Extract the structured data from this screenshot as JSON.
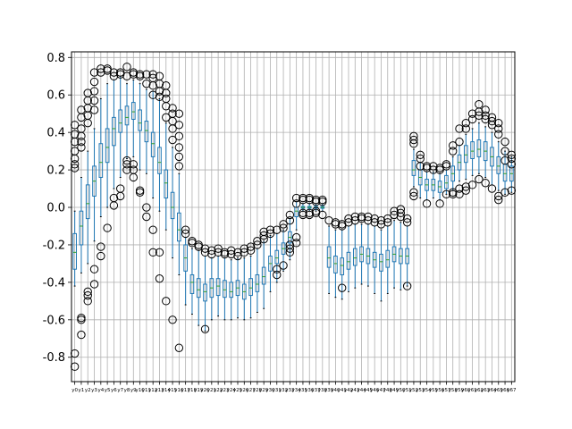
{
  "chart_data": {
    "type": "box",
    "xlabel": "",
    "ylabel": "",
    "ylim": [
      -0.93,
      0.83
    ],
    "yticks": [
      -0.8,
      -0.6,
      -0.4,
      -0.2,
      0.0,
      0.2,
      0.4,
      0.6,
      0.8
    ],
    "grid": true,
    "colors": {
      "box": "#1f77b4",
      "median": "#2ca02c",
      "flier": "#000000",
      "grid": "#b0b0b0"
    },
    "categories": [
      "y0",
      "y1",
      "y2",
      "y3",
      "y4",
      "y5",
      "y6",
      "y7",
      "y8",
      "y9",
      "y10",
      "y11",
      "y12",
      "y13",
      "y14",
      "y15",
      "y16",
      "y17",
      "y18",
      "y19",
      "y20",
      "y21",
      "y22",
      "y23",
      "y24",
      "y25",
      "y26",
      "y27",
      "y28",
      "y29",
      "y30",
      "y31",
      "y32",
      "y33",
      "y34",
      "y35",
      "y36",
      "y37",
      "y38",
      "y39",
      "y40",
      "y41",
      "y42",
      "y43",
      "y44",
      "y45",
      "y46",
      "y47",
      "y48",
      "y49",
      "y50",
      "y51",
      "y52",
      "y53",
      "y54",
      "y55",
      "y56",
      "y57",
      "y58",
      "y59",
      "y60",
      "y61",
      "y62",
      "y63",
      "y64",
      "y65",
      "y66",
      "y67"
    ],
    "boxes": [
      {
        "q1": -0.33,
        "med": -0.24,
        "q3": -0.14,
        "wlo": -0.42,
        "whi": -0.02,
        "fliers": [
          -0.85,
          -0.78,
          0.21,
          0.23,
          0.26,
          0.3,
          0.35,
          0.39,
          0.44
        ]
      },
      {
        "q1": -0.2,
        "med": -0.1,
        "q3": -0.02,
        "wlo": -0.35,
        "whi": 0.16,
        "fliers": [
          -0.68,
          -0.6,
          -0.59,
          0.32,
          0.35,
          0.38,
          0.42,
          0.48,
          0.52
        ]
      },
      {
        "q1": -0.06,
        "med": 0.02,
        "q3": 0.12,
        "wlo": -0.3,
        "whi": 0.3,
        "fliers": [
          -0.5,
          -0.47,
          -0.45,
          0.45,
          0.49,
          0.53,
          0.57,
          0.61
        ]
      },
      {
        "q1": 0.06,
        "med": 0.14,
        "q3": 0.22,
        "wlo": -0.18,
        "whi": 0.42,
        "fliers": [
          -0.41,
          -0.33,
          0.52,
          0.57,
          0.62,
          0.67,
          0.72
        ]
      },
      {
        "q1": 0.16,
        "med": 0.24,
        "q3": 0.34,
        "wlo": -0.05,
        "whi": 0.58,
        "fliers": [
          -0.26,
          -0.21,
          0.72,
          0.74
        ]
      },
      {
        "q1": 0.24,
        "med": 0.32,
        "q3": 0.42,
        "wlo": 0.0,
        "whi": 0.66,
        "fliers": [
          -0.11,
          0.74,
          0.73
        ]
      },
      {
        "q1": 0.33,
        "med": 0.42,
        "q3": 0.48,
        "wlo": 0.1,
        "whi": 0.68,
        "fliers": [
          0.01,
          0.05,
          0.72,
          0.7
        ]
      },
      {
        "q1": 0.4,
        "med": 0.45,
        "q3": 0.52,
        "wlo": 0.16,
        "whi": 0.7,
        "fliers": [
          0.06,
          0.1,
          0.71,
          0.72
        ]
      },
      {
        "q1": 0.44,
        "med": 0.48,
        "q3": 0.54,
        "wlo": 0.26,
        "whi": 0.66,
        "fliers": [
          0.2,
          0.23,
          0.25,
          0.7,
          0.75
        ]
      },
      {
        "q1": 0.47,
        "med": 0.51,
        "q3": 0.56,
        "wlo": 0.27,
        "whi": 0.68,
        "fliers": [
          0.16,
          0.2,
          0.23,
          0.71,
          0.72
        ]
      },
      {
        "q1": 0.41,
        "med": 0.45,
        "q3": 0.52,
        "wlo": 0.2,
        "whi": 0.66,
        "fliers": [
          0.08,
          0.09,
          0.7,
          0.71
        ]
      },
      {
        "q1": 0.35,
        "med": 0.41,
        "q3": 0.46,
        "wlo": 0.18,
        "whi": 0.63,
        "fliers": [
          -0.05,
          0.0,
          0.66,
          0.71
        ]
      },
      {
        "q1": 0.27,
        "med": 0.34,
        "q3": 0.4,
        "wlo": 0.05,
        "whi": 0.62,
        "fliers": [
          -0.24,
          -0.12,
          0.6,
          0.65,
          0.69,
          0.71
        ]
      },
      {
        "q1": 0.18,
        "med": 0.24,
        "q3": 0.32,
        "wlo": -0.02,
        "whi": 0.58,
        "fliers": [
          -0.38,
          -0.24,
          0.59,
          0.62,
          0.66,
          0.7
        ]
      },
      {
        "q1": 0.05,
        "med": 0.13,
        "q3": 0.2,
        "wlo": -0.12,
        "whi": 0.45,
        "fliers": [
          -0.5,
          0.48,
          0.54,
          0.58,
          0.61,
          0.65
        ]
      },
      {
        "q1": -0.06,
        "med": 0.0,
        "q3": 0.08,
        "wlo": -0.27,
        "whi": 0.32,
        "fliers": [
          -0.6,
          0.36,
          0.42,
          0.46,
          0.5,
          0.53
        ]
      },
      {
        "q1": -0.18,
        "med": -0.12,
        "q3": -0.03,
        "wlo": -0.36,
        "whi": 0.18,
        "fliers": [
          -0.75,
          0.22,
          0.27,
          0.32,
          0.38,
          0.44,
          0.5
        ]
      },
      {
        "q1": -0.34,
        "med": -0.27,
        "q3": -0.2,
        "wlo": -0.52,
        "whi": -0.16,
        "fliers": [
          -0.12,
          -0.14
        ]
      },
      {
        "q1": -0.46,
        "med": -0.4,
        "q3": -0.36,
        "wlo": -0.57,
        "whi": -0.22,
        "fliers": [
          -0.18,
          -0.19
        ]
      },
      {
        "q1": -0.48,
        "med": -0.44,
        "q3": -0.38,
        "wlo": -0.63,
        "whi": -0.23,
        "fliers": [
          -0.2,
          -0.21
        ]
      },
      {
        "q1": -0.5,
        "med": -0.45,
        "q3": -0.41,
        "wlo": -0.66,
        "whi": -0.26,
        "fliers": [
          -0.65,
          -0.22,
          -0.24
        ]
      },
      {
        "q1": -0.48,
        "med": -0.43,
        "q3": -0.38,
        "wlo": -0.6,
        "whi": -0.27,
        "fliers": [
          -0.23,
          -0.25
        ]
      },
      {
        "q1": -0.47,
        "med": -0.42,
        "q3": -0.38,
        "wlo": -0.58,
        "whi": -0.26,
        "fliers": [
          -0.22,
          -0.24
        ]
      },
      {
        "q1": -0.48,
        "med": -0.44,
        "q3": -0.39,
        "wlo": -0.6,
        "whi": -0.27,
        "fliers": [
          -0.24,
          -0.25
        ]
      },
      {
        "q1": -0.48,
        "med": -0.45,
        "q3": -0.4,
        "wlo": -0.6,
        "whi": -0.28,
        "fliers": [
          -0.23,
          -0.25
        ]
      },
      {
        "q1": -0.47,
        "med": -0.43,
        "q3": -0.39,
        "wlo": -0.59,
        "whi": -0.27,
        "fliers": [
          -0.24,
          -0.26
        ]
      },
      {
        "q1": -0.49,
        "med": -0.45,
        "q3": -0.41,
        "wlo": -0.6,
        "whi": -0.27,
        "fliers": [
          -0.22,
          -0.24
        ]
      },
      {
        "q1": -0.47,
        "med": -0.43,
        "q3": -0.38,
        "wlo": -0.59,
        "whi": -0.26,
        "fliers": [
          -0.21,
          -0.23
        ]
      },
      {
        "q1": -0.45,
        "med": -0.41,
        "q3": -0.36,
        "wlo": -0.56,
        "whi": -0.22,
        "fliers": [
          -0.18,
          -0.2
        ]
      },
      {
        "q1": -0.41,
        "med": -0.37,
        "q3": -0.32,
        "wlo": -0.54,
        "whi": -0.18,
        "fliers": [
          -0.13,
          -0.15,
          -0.17
        ]
      },
      {
        "q1": -0.34,
        "med": -0.3,
        "q3": -0.26,
        "wlo": -0.45,
        "whi": -0.15,
        "fliers": [
          -0.12,
          -0.14
        ]
      },
      {
        "q1": -0.3,
        "med": -0.27,
        "q3": -0.23,
        "wlo": -0.4,
        "whi": -0.14,
        "fliers": [
          -0.33,
          -0.36,
          -0.12
        ]
      },
      {
        "q1": -0.25,
        "med": -0.22,
        "q3": -0.19,
        "wlo": -0.34,
        "whi": -0.12,
        "fliers": [
          -0.31,
          -0.09,
          -0.11
        ]
      },
      {
        "q1": -0.19,
        "med": -0.16,
        "q3": -0.13,
        "wlo": -0.28,
        "whi": -0.06,
        "fliers": [
          -0.2,
          -0.22,
          -0.24,
          -0.04,
          -0.07
        ]
      },
      {
        "q1": -0.05,
        "med": -0.02,
        "q3": 0.0,
        "wlo": -0.12,
        "whi": 0.03,
        "fliers": [
          0.02,
          0.05,
          -0.16,
          -0.19
        ]
      },
      {
        "q1": -0.005,
        "med": 0.0,
        "q3": 0.005,
        "wlo": -0.02,
        "whi": 0.02,
        "fliers": [
          0.04,
          0.05,
          -0.04,
          -0.03
        ]
      },
      {
        "q1": -0.005,
        "med": 0.0,
        "q3": 0.005,
        "wlo": -0.02,
        "whi": 0.02,
        "fliers": [
          0.04,
          0.05,
          -0.04,
          -0.03
        ]
      },
      {
        "q1": -0.005,
        "med": 0.0,
        "q3": 0.005,
        "wlo": -0.02,
        "whi": 0.02,
        "fliers": [
          0.03,
          0.04,
          -0.03,
          -0.02
        ]
      },
      {
        "q1": -0.005,
        "med": 0.0,
        "q3": 0.005,
        "wlo": -0.02,
        "whi": 0.02,
        "fliers": [
          0.03,
          0.04,
          -0.04
        ]
      },
      {
        "q1": -0.32,
        "med": -0.27,
        "q3": -0.21,
        "wlo": -0.46,
        "whi": -0.1,
        "fliers": [
          -0.07
        ]
      },
      {
        "q1": -0.35,
        "med": -0.3,
        "q3": -0.26,
        "wlo": -0.48,
        "whi": -0.12,
        "fliers": [
          -0.08,
          -0.09
        ]
      },
      {
        "q1": -0.36,
        "med": -0.31,
        "q3": -0.27,
        "wlo": -0.49,
        "whi": -0.12,
        "fliers": [
          -0.43,
          -0.09,
          -0.1
        ]
      },
      {
        "q1": -0.33,
        "med": -0.29,
        "q3": -0.24,
        "wlo": -0.45,
        "whi": -0.1,
        "fliers": [
          -0.06,
          -0.08
        ]
      },
      {
        "q1": -0.31,
        "med": -0.27,
        "q3": -0.22,
        "wlo": -0.43,
        "whi": -0.09,
        "fliers": [
          -0.05,
          -0.07
        ]
      },
      {
        "q1": -0.29,
        "med": -0.25,
        "q3": -0.21,
        "wlo": -0.41,
        "whi": -0.09,
        "fliers": [
          -0.05,
          -0.06
        ]
      },
      {
        "q1": -0.3,
        "med": -0.26,
        "q3": -0.22,
        "wlo": -0.42,
        "whi": -0.09,
        "fliers": [
          -0.05,
          -0.07
        ]
      },
      {
        "q1": -0.32,
        "med": -0.28,
        "q3": -0.24,
        "wlo": -0.46,
        "whi": -0.1,
        "fliers": [
          -0.06,
          -0.08
        ]
      },
      {
        "q1": -0.34,
        "med": -0.29,
        "q3": -0.25,
        "wlo": -0.5,
        "whi": -0.12,
        "fliers": [
          -0.07,
          -0.09
        ]
      },
      {
        "q1": -0.32,
        "med": -0.28,
        "q3": -0.23,
        "wlo": -0.46,
        "whi": -0.1,
        "fliers": [
          -0.06,
          -0.08
        ]
      },
      {
        "q1": -0.29,
        "med": -0.25,
        "q3": -0.21,
        "wlo": -0.43,
        "whi": -0.07,
        "fliers": [
          -0.02,
          -0.04
        ]
      },
      {
        "q1": -0.3,
        "med": -0.26,
        "q3": -0.22,
        "wlo": -0.44,
        "whi": -0.08,
        "fliers": [
          -0.01,
          -0.03,
          -0.05
        ]
      },
      {
        "q1": -0.3,
        "med": -0.26,
        "q3": -0.22,
        "wlo": -0.42,
        "whi": -0.1,
        "fliers": [
          -0.42,
          -0.06,
          -0.08
        ]
      },
      {
        "q1": 0.17,
        "med": 0.2,
        "q3": 0.25,
        "wlo": 0.11,
        "whi": 0.31,
        "fliers": [
          0.06,
          0.08,
          0.34,
          0.36,
          0.38
        ]
      },
      {
        "q1": 0.12,
        "med": 0.16,
        "q3": 0.2,
        "wlo": 0.05,
        "whi": 0.24,
        "fliers": [
          0.26,
          0.28,
          0.22
        ]
      },
      {
        "q1": 0.09,
        "med": 0.12,
        "q3": 0.15,
        "wlo": 0.04,
        "whi": 0.19,
        "fliers": [
          0.02,
          0.21,
          0.22
        ]
      },
      {
        "q1": 0.09,
        "med": 0.12,
        "q3": 0.15,
        "wlo": 0.05,
        "whi": 0.19,
        "fliers": [
          0.2,
          0.22
        ]
      },
      {
        "q1": 0.08,
        "med": 0.11,
        "q3": 0.14,
        "wlo": 0.04,
        "whi": 0.18,
        "fliers": [
          0.02,
          0.2,
          0.21
        ]
      },
      {
        "q1": 0.1,
        "med": 0.13,
        "q3": 0.17,
        "wlo": 0.07,
        "whi": 0.2,
        "fliers": [
          0.07,
          0.22,
          0.23
        ]
      },
      {
        "q1": 0.14,
        "med": 0.18,
        "q3": 0.22,
        "wlo": 0.09,
        "whi": 0.27,
        "fliers": [
          0.07,
          0.08,
          0.3,
          0.33
        ]
      },
      {
        "q1": 0.2,
        "med": 0.24,
        "q3": 0.28,
        "wlo": 0.14,
        "whi": 0.33,
        "fliers": [
          0.07,
          0.1,
          0.35,
          0.42
        ]
      },
      {
        "q1": 0.24,
        "med": 0.28,
        "q3": 0.33,
        "wlo": 0.15,
        "whi": 0.39,
        "fliers": [
          0.09,
          0.11,
          0.42,
          0.45
        ]
      },
      {
        "q1": 0.26,
        "med": 0.3,
        "q3": 0.35,
        "wlo": 0.17,
        "whi": 0.42,
        "fliers": [
          0.12,
          0.47,
          0.5
        ]
      },
      {
        "q1": 0.27,
        "med": 0.31,
        "q3": 0.36,
        "wlo": 0.18,
        "whi": 0.45,
        "fliers": [
          0.15,
          0.49,
          0.51,
          0.55
        ]
      },
      {
        "q1": 0.25,
        "med": 0.3,
        "q3": 0.35,
        "wlo": 0.16,
        "whi": 0.43,
        "fliers": [
          0.13,
          0.47,
          0.49,
          0.52
        ]
      },
      {
        "q1": 0.22,
        "med": 0.27,
        "q3": 0.32,
        "wlo": 0.12,
        "whi": 0.4,
        "fliers": [
          0.1,
          0.44,
          0.46,
          0.48
        ]
      },
      {
        "q1": 0.18,
        "med": 0.22,
        "q3": 0.27,
        "wlo": 0.09,
        "whi": 0.35,
        "fliers": [
          0.04,
          0.06,
          0.39,
          0.42,
          0.45
        ]
      },
      {
        "q1": 0.14,
        "med": 0.18,
        "q3": 0.23,
        "wlo": 0.07,
        "whi": 0.3,
        "fliers": [
          0.08,
          0.25,
          0.3,
          0.35
        ]
      },
      {
        "q1": 0.14,
        "med": 0.18,
        "q3": 0.22,
        "wlo": 0.08,
        "whi": 0.27,
        "fliers": [
          0.09,
          0.23,
          0.26,
          0.28
        ]
      }
    ]
  }
}
